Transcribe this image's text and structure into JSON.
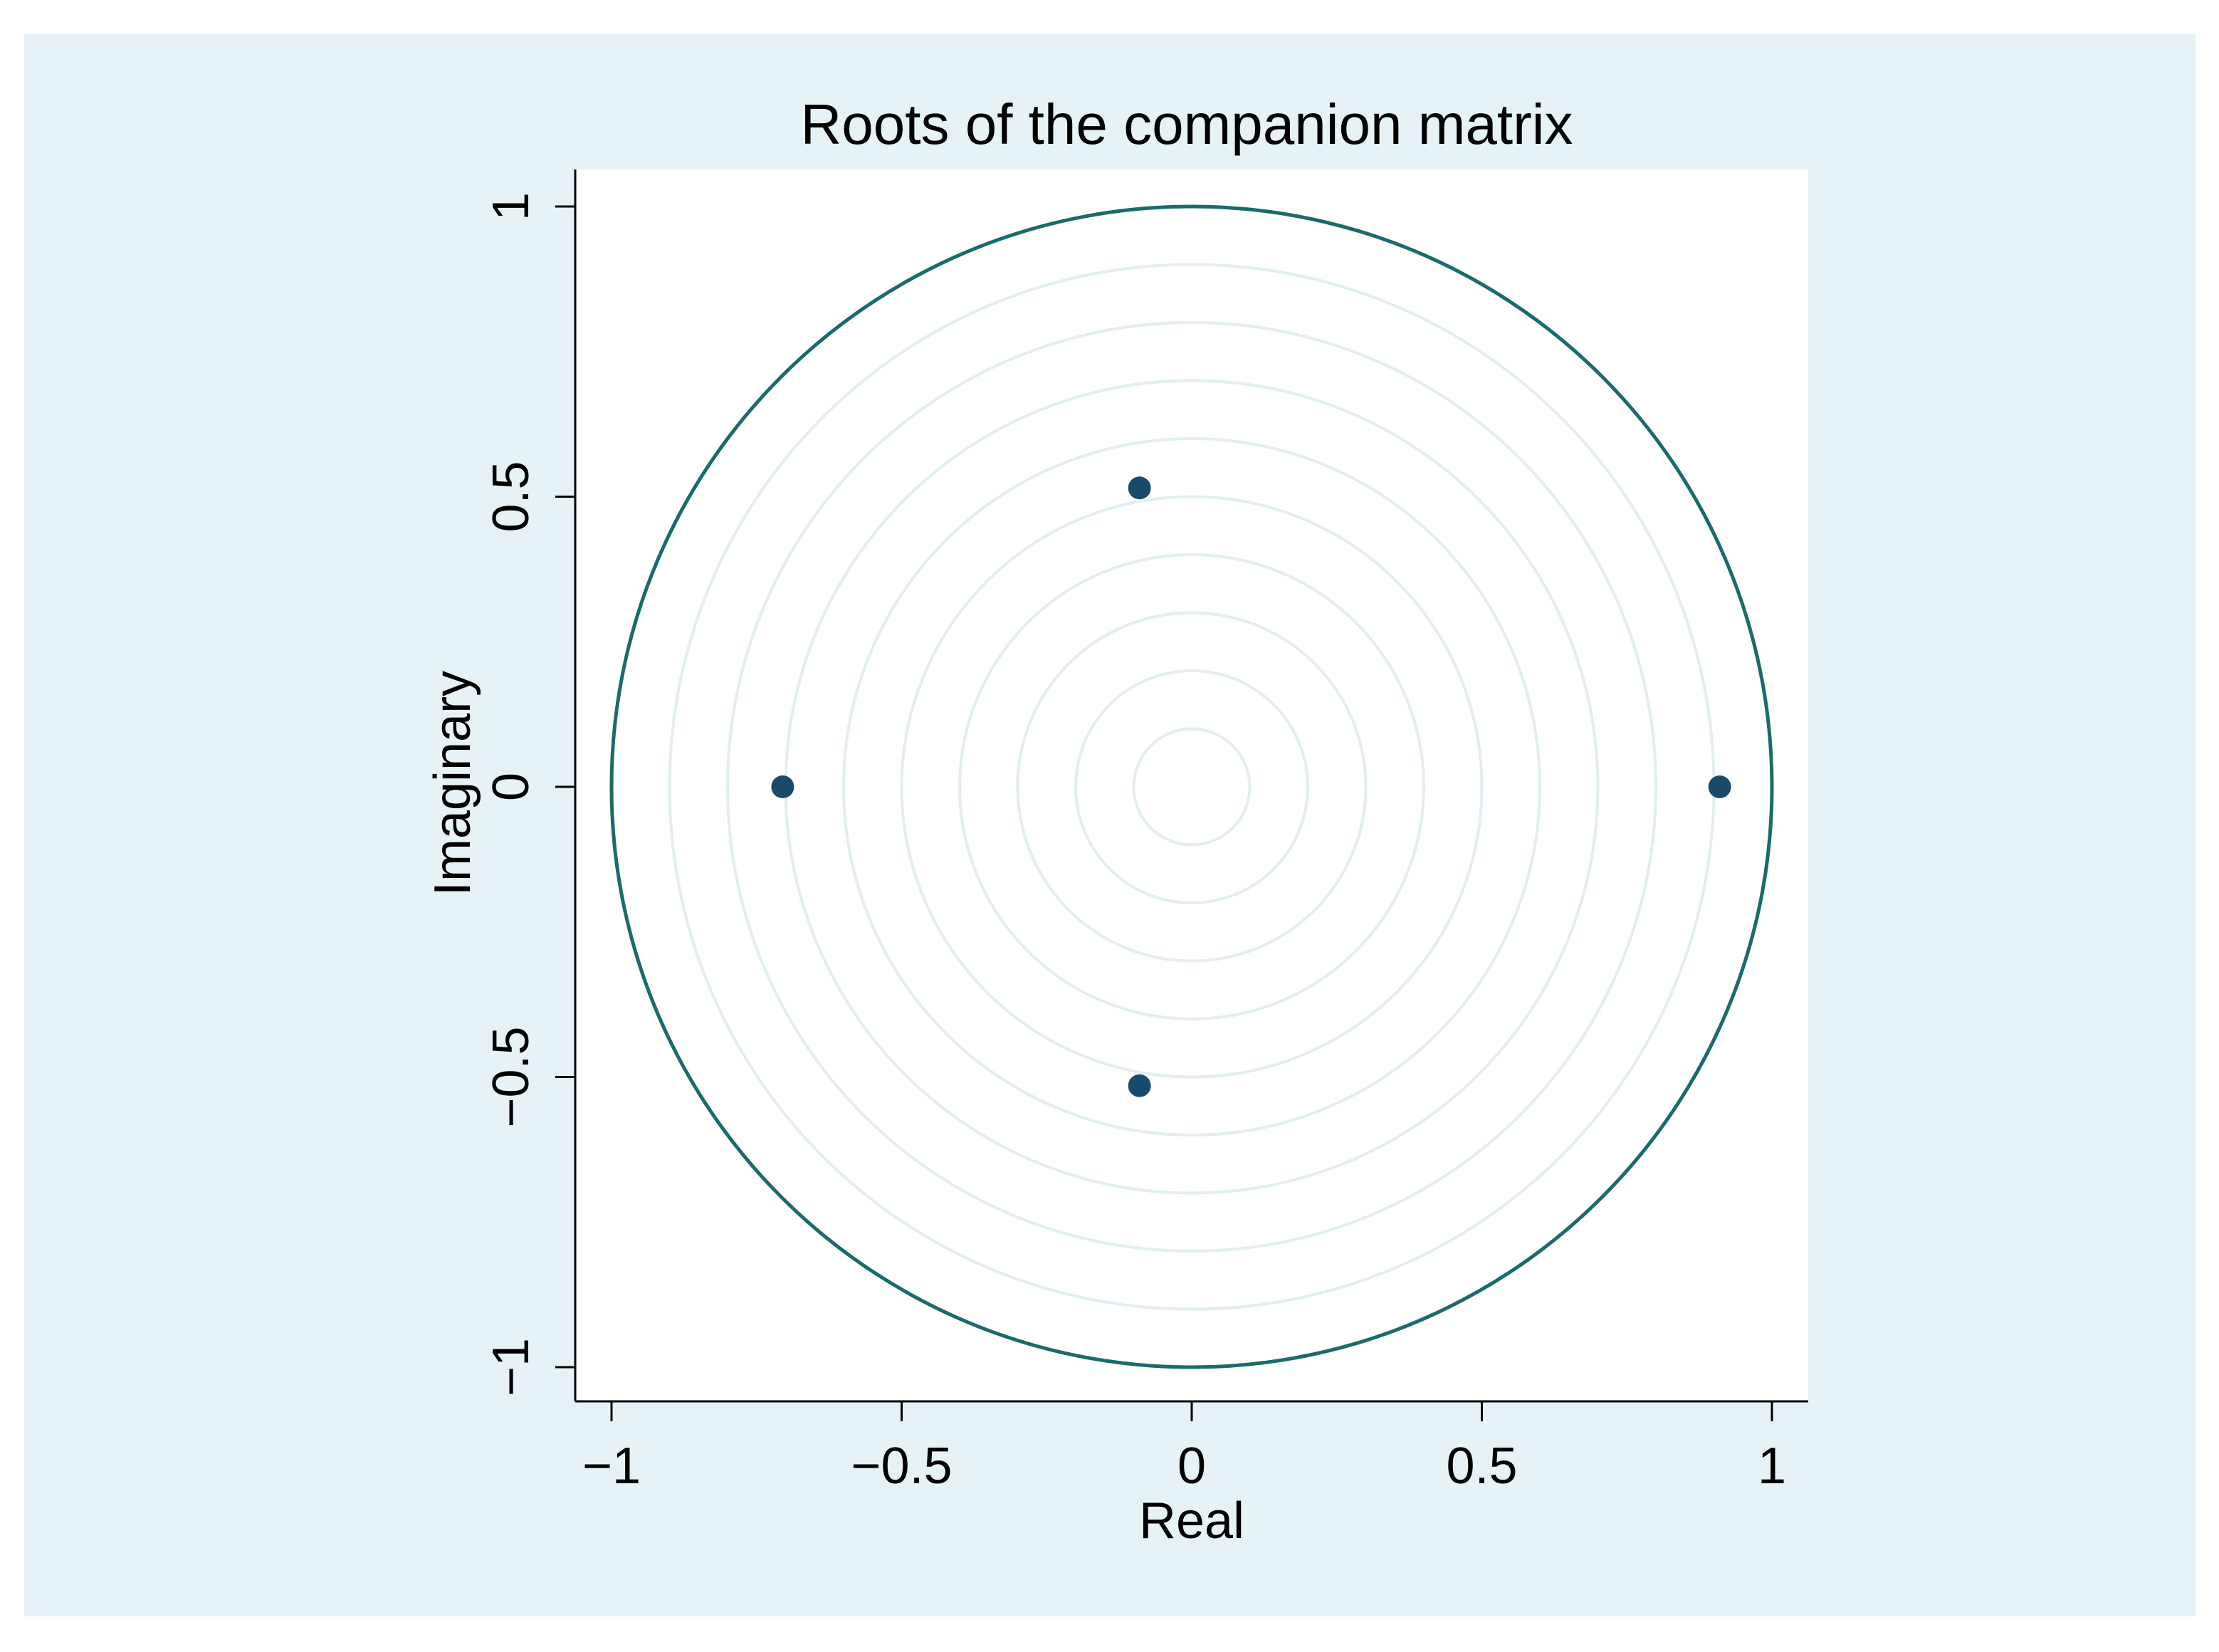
{
  "chart_data": {
    "type": "scatter",
    "title": "Roots of the companion matrix",
    "xlabel": "Real",
    "ylabel": "Imaginary",
    "xlim": [
      -1,
      1
    ],
    "ylim": [
      -1,
      1
    ],
    "x_ticks": [
      -1,
      -0.5,
      0,
      0.5,
      1
    ],
    "y_ticks": [
      -1,
      -0.5,
      0,
      0.5,
      1
    ],
    "x_tick_labels": [
      "−1",
      "−0.5",
      "0",
      "0.5",
      "1"
    ],
    "y_tick_labels": [
      "−1",
      "−0.5",
      "0",
      "0.5",
      "1"
    ],
    "unit_circle": true,
    "reference_circles": true,
    "grid": false,
    "legend": "none",
    "points": [
      {
        "x": -0.09,
        "y": 0.515
      },
      {
        "x": -0.09,
        "y": -0.515
      },
      {
        "x": -0.705,
        "y": 0.0
      },
      {
        "x": 0.91,
        "y": 0.0
      }
    ]
  },
  "colors": {
    "outer_background": "#e6f2f5",
    "plot_background": "#ffffff",
    "unit_circle": "#1a6b6b",
    "reference_circles": "#e2eef0",
    "points": "#1a4a6b",
    "axis": "#000000",
    "text": "#000000"
  }
}
